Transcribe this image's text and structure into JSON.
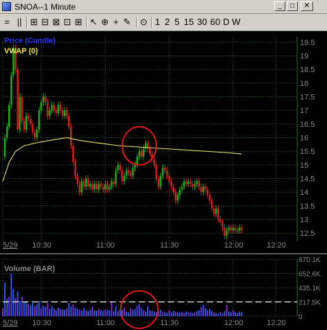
{
  "window": {
    "title": "SNOA--1 Minute"
  },
  "toolbar": {
    "items": [
      "=",
      "||",
      "⊞",
      "⊟",
      "⊠",
      "⊡",
      "⊞",
      "↖",
      "⊕",
      "+",
      "✎",
      "⊙",
      "1",
      "2",
      "5",
      "15",
      "30",
      "60",
      "D",
      "W"
    ]
  },
  "colors": {
    "background": "#000000",
    "grid": "#2f6a2f",
    "up_candle": "#19b319",
    "down_candle": "#d81f1f",
    "vwap": "#d8d46a",
    "price_label": "#2a33ff",
    "vwap_label": "#f0ee4a",
    "axis_text": "#8a8a8a",
    "annotation": "#e01818"
  },
  "chart_data": [
    {
      "type": "candlestick",
      "legend": [
        {
          "name": "Price (Candle)",
          "color": "#2a33ff"
        },
        {
          "name": "VWAP (0)",
          "color": "#f0ee4a"
        }
      ],
      "ylim": [
        12.2,
        19.7
      ],
      "y_ticks": [
        "19.5",
        "19",
        "18.5",
        "18",
        "17.5",
        "17",
        "16.5",
        "16",
        "15.5",
        "15",
        "14.5",
        "14",
        "13.5",
        "13",
        "12.5"
      ],
      "x_ticks": [
        {
          "label": "5/29",
          "time_min": 0
        },
        {
          "label": "10:30",
          "time_min": 18
        },
        {
          "label": "11:00",
          "time_min": 48
        },
        {
          "label": "11:30",
          "time_min": 78
        },
        {
          "label": "12:00",
          "time_min": 108
        },
        {
          "label": "12:20",
          "time_min": 128
        }
      ],
      "x_range_min": [
        0,
        138
      ],
      "price_path": [
        [
          0,
          15.3
        ],
        [
          1,
          16.0
        ],
        [
          2,
          16.4
        ],
        [
          3,
          17.2
        ],
        [
          4,
          18.3
        ],
        [
          5,
          19.3
        ],
        [
          6,
          18.5
        ],
        [
          7,
          16.3
        ],
        [
          8,
          17.5
        ],
        [
          9,
          16.6
        ],
        [
          10,
          16.3
        ],
        [
          11,
          16.8
        ],
        [
          12,
          16.7
        ],
        [
          13,
          16.5
        ],
        [
          14,
          16.2
        ],
        [
          15,
          16.0
        ],
        [
          16,
          16.3
        ],
        [
          17,
          17.0
        ],
        [
          18,
          17.3
        ],
        [
          19,
          17.5
        ],
        [
          20,
          17.3
        ],
        [
          21,
          16.8
        ],
        [
          22,
          17.0
        ],
        [
          23,
          17.2
        ],
        [
          24,
          17.0
        ],
        [
          25,
          16.9
        ],
        [
          26,
          17.2
        ],
        [
          27,
          17.0
        ],
        [
          28,
          16.8
        ],
        [
          29,
          17.0
        ],
        [
          30,
          16.8
        ],
        [
          31,
          16.4
        ],
        [
          32,
          15.7
        ],
        [
          33,
          15.1
        ],
        [
          34,
          14.6
        ],
        [
          35,
          14.3
        ],
        [
          36,
          14.0
        ],
        [
          37,
          14.4
        ],
        [
          38,
          14.2
        ],
        [
          39,
          14.5
        ],
        [
          40,
          14.2
        ],
        [
          41,
          14.3
        ],
        [
          42,
          14.1
        ],
        [
          43,
          14.3
        ],
        [
          44,
          14.1
        ],
        [
          45,
          14.3
        ],
        [
          46,
          14.2
        ],
        [
          47,
          14.1
        ],
        [
          48,
          14.3
        ],
        [
          49,
          14.1
        ],
        [
          50,
          14.2
        ],
        [
          51,
          14.4
        ],
        [
          52,
          14.3
        ],
        [
          53,
          14.8
        ],
        [
          54,
          15.0
        ],
        [
          55,
          14.8
        ],
        [
          56,
          14.4
        ],
        [
          57,
          14.6
        ],
        [
          58,
          14.8
        ],
        [
          59,
          14.7
        ],
        [
          60,
          14.6
        ],
        [
          61,
          14.9
        ],
        [
          62,
          15.0
        ],
        [
          63,
          15.3
        ],
        [
          64,
          15.5
        ],
        [
          65,
          15.3
        ],
        [
          66,
          15.6
        ],
        [
          67,
          15.8
        ],
        [
          68,
          15.6
        ],
        [
          69,
          15.4
        ],
        [
          70,
          15.2
        ],
        [
          71,
          15.0
        ],
        [
          72,
          14.5
        ],
        [
          73,
          14.2
        ],
        [
          74,
          14.6
        ],
        [
          75,
          14.9
        ],
        [
          76,
          14.8
        ],
        [
          77,
          14.6
        ],
        [
          78,
          14.4
        ],
        [
          79,
          14.2
        ],
        [
          80,
          14.0
        ],
        [
          81,
          13.7
        ],
        [
          82,
          13.9
        ],
        [
          83,
          14.1
        ],
        [
          84,
          14.2
        ],
        [
          85,
          14.4
        ],
        [
          86,
          14.3
        ],
        [
          87,
          14.4
        ],
        [
          88,
          14.3
        ],
        [
          89,
          14.2
        ],
        [
          90,
          14.3
        ],
        [
          91,
          14.4
        ],
        [
          92,
          14.2
        ],
        [
          93,
          14.0
        ],
        [
          94,
          14.2
        ],
        [
          95,
          14.1
        ],
        [
          96,
          13.9
        ],
        [
          97,
          13.7
        ],
        [
          98,
          13.4
        ],
        [
          99,
          13.2
        ],
        [
          100,
          13.4
        ],
        [
          101,
          13.0
        ],
        [
          102,
          12.9
        ],
        [
          103,
          12.7
        ],
        [
          104,
          12.4
        ],
        [
          105,
          12.6
        ],
        [
          106,
          12.7
        ],
        [
          107,
          12.6
        ],
        [
          108,
          12.7
        ],
        [
          109,
          12.6
        ],
        [
          110,
          12.6
        ],
        [
          111,
          12.7
        ],
        [
          112,
          12.6
        ]
      ],
      "vwap_path": [
        [
          0,
          14.4
        ],
        [
          3,
          15.1
        ],
        [
          6,
          15.5
        ],
        [
          10,
          15.7
        ],
        [
          15,
          15.8
        ],
        [
          22,
          15.9
        ],
        [
          30,
          16.0
        ],
        [
          36,
          15.9
        ],
        [
          45,
          15.8
        ],
        [
          55,
          15.7
        ],
        [
          65,
          15.65
        ],
        [
          75,
          15.6
        ],
        [
          85,
          15.55
        ],
        [
          95,
          15.5
        ],
        [
          105,
          15.45
        ],
        [
          112,
          15.4
        ]
      ],
      "annotation_circle": {
        "center_time_min": 64,
        "center_price": 15.7,
        "time_radius": 8,
        "price_radius": 0.7
      }
    },
    {
      "type": "bar",
      "legend": [
        {
          "name": "Volume (BAR)",
          "color": "#8a8a8a"
        }
      ],
      "ylim": [
        0,
        870100
      ],
      "y_ticks": [
        "870.1K",
        "652.6K",
        "435.1K",
        "217.5K",
        "0"
      ],
      "reference_line": 217500,
      "values": [
        120000,
        520000,
        260000,
        300000,
        650000,
        420000,
        280000,
        380000,
        240000,
        300000,
        230000,
        210000,
        180000,
        160000,
        200000,
        150000,
        180000,
        230000,
        120000,
        160000,
        140000,
        200000,
        110000,
        150000,
        120000,
        90000,
        130000,
        110000,
        100000,
        95000,
        120000,
        200000,
        150000,
        180000,
        130000,
        110000,
        95000,
        85000,
        120000,
        90000,
        80000,
        100000,
        140000,
        90000,
        85000,
        110000,
        90000,
        80000,
        100000,
        95000,
        85000,
        220000,
        70000,
        150000,
        80000,
        110000,
        95000,
        130000,
        70000,
        60000,
        120000,
        90000,
        110000,
        160000,
        180000,
        120000,
        90000,
        70000,
        150000,
        90000,
        80000,
        70000,
        60000,
        80000,
        100000,
        70000,
        60000,
        50000,
        90000,
        60000,
        80000,
        70000,
        60000,
        55000,
        65000,
        50000,
        70000,
        60000,
        55000,
        50000,
        60000,
        80000,
        90000,
        140000,
        170000,
        120000,
        90000,
        110000,
        80000,
        60000,
        50000,
        40000,
        60000,
        50000,
        80000,
        170000,
        70000,
        60000,
        90000,
        60000,
        50000,
        70000,
        60000
      ],
      "annotation_circle": {
        "center_index": 64,
        "center_value": 100000
      }
    }
  ]
}
